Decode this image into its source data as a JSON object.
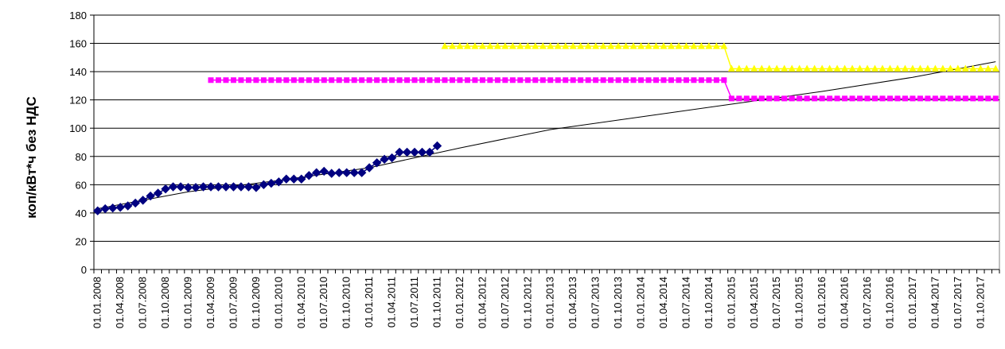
{
  "chart_data": {
    "type": "line",
    "ylabel": "коп/кВт*ч без НДС",
    "ylim": [
      0,
      180
    ],
    "yticks": [
      0,
      20,
      40,
      60,
      80,
      100,
      120,
      140,
      160,
      180
    ],
    "x_start": "2008-01",
    "x_end": "2017-12",
    "xtick_labels": [
      "01.01.2008",
      "01.04.2008",
      "01.07.2008",
      "01.10.2008",
      "01.01.2009",
      "01.04.2009",
      "01.07.2009",
      "01.10.2009",
      "01.01.2010",
      "01.04.2010",
      "01.07.2010",
      "01.10.2010",
      "01.01.2011",
      "01.04.2011",
      "01.07.2011",
      "01.10.2011",
      "01.01.2012",
      "01.04.2012",
      "01.07.2012",
      "01.10.2012",
      "01.01.2013",
      "01.04.2013",
      "01.07.2013",
      "01.10.2013",
      "01.01.2014",
      "01.04.2014",
      "01.07.2014",
      "01.10.2014",
      "01.01.2015",
      "01.04.2015",
      "01.07.2015",
      "01.10.2015",
      "01.01.2016",
      "01.04.2016",
      "01.07.2016",
      "01.10.2016",
      "01.01.2017",
      "01.04.2017",
      "01.07.2017",
      "01.10.2017"
    ],
    "grid": "horizontal",
    "series": [
      {
        "marker": "diamond",
        "color": "#000080",
        "x": [
          "2008-01",
          "2008-02",
          "2008-03",
          "2008-04",
          "2008-05",
          "2008-06",
          "2008-07",
          "2008-08",
          "2008-09",
          "2008-10",
          "2008-11",
          "2008-12",
          "2009-01",
          "2009-02",
          "2009-03",
          "2009-04",
          "2009-05",
          "2009-06",
          "2009-07",
          "2009-08",
          "2009-09",
          "2009-10",
          "2009-11",
          "2009-12",
          "2010-01",
          "2010-02",
          "2010-03",
          "2010-04",
          "2010-05",
          "2010-06",
          "2010-07",
          "2010-08",
          "2010-09",
          "2010-10",
          "2010-11",
          "2010-12",
          "2011-01",
          "2011-02",
          "2011-03",
          "2011-04",
          "2011-05",
          "2011-06",
          "2011-07",
          "2011-08",
          "2011-09",
          "2011-10"
        ],
        "values": [
          41.5,
          43,
          43.5,
          44,
          45,
          47,
          49,
          52,
          54,
          57,
          58.5,
          58.5,
          58,
          58,
          58.5,
          58.5,
          58.5,
          58.5,
          58.5,
          58.5,
          58.5,
          58,
          60,
          61,
          62,
          64,
          64,
          64,
          66.5,
          68.5,
          69.5,
          68,
          68.5,
          68.5,
          68.5,
          68.5,
          72,
          75.5,
          78,
          79,
          83,
          83,
          83,
          83,
          83,
          87.5
        ]
      },
      {
        "marker": "square",
        "color": "#FF00FF",
        "x": [
          "2009-04",
          "2009-05",
          "2009-06",
          "2009-07",
          "2009-08",
          "2009-09",
          "2009-10",
          "2009-11",
          "2009-12",
          "2010-01",
          "2010-02",
          "2010-03",
          "2010-04",
          "2010-05",
          "2010-06",
          "2010-07",
          "2010-08",
          "2010-09",
          "2010-10",
          "2010-11",
          "2010-12",
          "2011-01",
          "2011-02",
          "2011-03",
          "2011-04",
          "2011-05",
          "2011-06",
          "2011-07",
          "2011-08",
          "2011-09",
          "2011-10",
          "2011-11",
          "2011-12",
          "2012-01",
          "2012-02",
          "2012-03",
          "2012-04",
          "2012-05",
          "2012-06",
          "2012-07",
          "2012-08",
          "2012-09",
          "2012-10",
          "2012-11",
          "2012-12",
          "2013-01",
          "2013-02",
          "2013-03",
          "2013-04",
          "2013-05",
          "2013-06",
          "2013-07",
          "2013-08",
          "2013-09",
          "2013-10",
          "2013-11",
          "2013-12",
          "2014-01",
          "2014-02",
          "2014-03",
          "2014-04",
          "2014-05",
          "2014-06",
          "2014-07",
          "2014-08",
          "2014-09",
          "2014-10",
          "2014-11",
          "2014-12",
          "2015-01",
          "2015-02",
          "2015-03",
          "2015-04",
          "2015-05",
          "2015-06",
          "2015-07",
          "2015-08",
          "2015-09",
          "2015-10",
          "2015-11",
          "2015-12",
          "2016-01",
          "2016-02",
          "2016-03",
          "2016-04",
          "2016-05",
          "2016-06",
          "2016-07",
          "2016-08",
          "2016-09",
          "2016-10",
          "2016-11",
          "2016-12",
          "2017-01",
          "2017-02",
          "2017-03",
          "2017-04",
          "2017-05",
          "2017-06",
          "2017-07",
          "2017-08",
          "2017-09",
          "2017-10",
          "2017-11",
          "2017-12"
        ],
        "values": [
          134,
          134,
          134,
          134,
          134,
          134,
          134,
          134,
          134,
          134,
          134,
          134,
          134,
          134,
          134,
          134,
          134,
          134,
          134,
          134,
          134,
          134,
          134,
          134,
          134,
          134,
          134,
          134,
          134,
          134,
          134,
          134,
          134,
          134,
          134,
          134,
          134,
          134,
          134,
          134,
          134,
          134,
          134,
          134,
          134,
          134,
          134,
          134,
          134,
          134,
          134,
          134,
          134,
          134,
          134,
          134,
          134,
          134,
          134,
          134,
          134,
          134,
          134,
          134,
          134,
          134,
          134,
          134,
          134,
          121,
          121,
          121,
          121,
          121,
          121,
          121,
          121,
          121,
          121,
          121,
          121,
          121,
          121,
          121,
          121,
          121,
          121,
          121,
          121,
          121,
          121,
          121,
          121,
          121,
          121,
          121,
          121,
          121,
          121,
          121,
          121,
          121,
          121,
          121,
          121
        ]
      },
      {
        "marker": "triangle",
        "color": "#FFFF00",
        "x": [
          "2011-11",
          "2011-12",
          "2012-01",
          "2012-02",
          "2012-03",
          "2012-04",
          "2012-05",
          "2012-06",
          "2012-07",
          "2012-08",
          "2012-09",
          "2012-10",
          "2012-11",
          "2012-12",
          "2013-01",
          "2013-02",
          "2013-03",
          "2013-04",
          "2013-05",
          "2013-06",
          "2013-07",
          "2013-08",
          "2013-09",
          "2013-10",
          "2013-11",
          "2013-12",
          "2014-01",
          "2014-02",
          "2014-03",
          "2014-04",
          "2014-05",
          "2014-06",
          "2014-07",
          "2014-08",
          "2014-09",
          "2014-10",
          "2014-11",
          "2014-12",
          "2015-01",
          "2015-02",
          "2015-03",
          "2015-04",
          "2015-05",
          "2015-06",
          "2015-07",
          "2015-08",
          "2015-09",
          "2015-10",
          "2015-11",
          "2015-12",
          "2016-01",
          "2016-02",
          "2016-03",
          "2016-04",
          "2016-05",
          "2016-06",
          "2016-07",
          "2016-08",
          "2016-09",
          "2016-10",
          "2016-11",
          "2016-12",
          "2017-01",
          "2017-02",
          "2017-03",
          "2017-04",
          "2017-05",
          "2017-06",
          "2017-07",
          "2017-08",
          "2017-09",
          "2017-10",
          "2017-11",
          "2017-12"
        ],
        "values": [
          158,
          158,
          158,
          158,
          158,
          158,
          158,
          158,
          158,
          158,
          158,
          158,
          158,
          158,
          158,
          158,
          158,
          158,
          158,
          158,
          158,
          158,
          158,
          158,
          158,
          158,
          158,
          158,
          158,
          158,
          158,
          158,
          158,
          158,
          158,
          158,
          158,
          158,
          142,
          142,
          142,
          142,
          142,
          142,
          142,
          142,
          142,
          142,
          142,
          142,
          142,
          142,
          142,
          142,
          142,
          142,
          142,
          142,
          142,
          142,
          142,
          142,
          142,
          142,
          142,
          142,
          142,
          142,
          142,
          142,
          142,
          142,
          142,
          142
        ]
      },
      {
        "type": "trendline",
        "color": "#000000",
        "x": [
          "2008-01",
          "2009-01",
          "2010-01",
          "2011-01",
          "2012-01",
          "2013-01",
          "2014-01",
          "2015-01",
          "2016-01",
          "2017-01",
          "2017-12"
        ],
        "values": [
          43,
          55,
          63,
          72,
          86,
          99,
          108,
          117,
          126,
          136,
          147
        ]
      }
    ]
  }
}
